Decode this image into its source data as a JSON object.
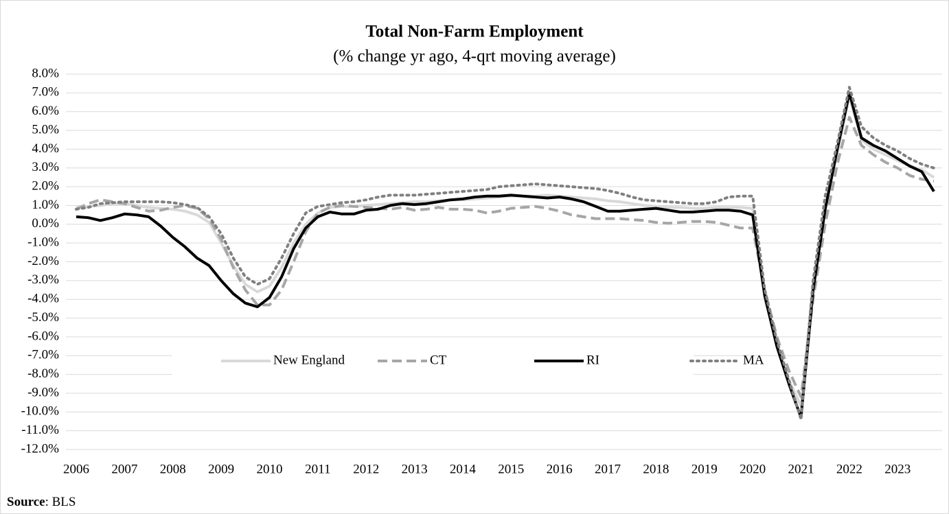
{
  "chart_data": {
    "type": "line",
    "title": "Total Non-Farm Employment",
    "subtitle": "(% change yr ago, 4-qrt moving average)",
    "source_label": "Source",
    "source": ": BLS",
    "categories": [
      "2006",
      null,
      null,
      null,
      "2007",
      null,
      null,
      null,
      "2008",
      null,
      null,
      null,
      "2009",
      null,
      null,
      null,
      "2010",
      null,
      null,
      null,
      "2011",
      null,
      null,
      null,
      "2012",
      null,
      null,
      null,
      "2013",
      null,
      null,
      null,
      "2014",
      null,
      null,
      null,
      "2015",
      null,
      null,
      null,
      "2016",
      null,
      null,
      null,
      "2017",
      null,
      null,
      null,
      "2018",
      null,
      null,
      null,
      "2019",
      null,
      null,
      null,
      "2020",
      null,
      null,
      null,
      "2021",
      null,
      null,
      null,
      "2022",
      null,
      null,
      null,
      "2023",
      null,
      null,
      null
    ],
    "series": [
      {
        "name": "New England",
        "color": "#d9d9d9",
        "dash": "solid",
        "values": [
          0.9,
          0.95,
          1.0,
          1.1,
          1.1,
          1.0,
          0.9,
          0.85,
          0.8,
          0.7,
          0.5,
          0.1,
          -1.0,
          -2.2,
          -3.2,
          -3.6,
          -3.3,
          -2.3,
          -1.0,
          0.0,
          0.6,
          0.9,
          0.95,
          0.95,
          1.0,
          1.05,
          1.1,
          1.15,
          1.2,
          1.2,
          1.25,
          1.3,
          1.3,
          1.35,
          1.4,
          1.45,
          1.5,
          1.5,
          1.5,
          1.55,
          1.5,
          1.45,
          1.4,
          1.35,
          1.25,
          1.2,
          1.1,
          1.0,
          0.95,
          0.9,
          0.9,
          0.85,
          0.85,
          0.9,
          0.9,
          0.9,
          0.85,
          -4.0,
          -6.3,
          -8.3,
          -9.7,
          -3.2,
          1.0,
          3.8,
          6.8,
          4.5,
          4.0,
          3.7,
          3.4,
          3.1,
          2.9,
          2.5
        ]
      },
      {
        "name": "CT",
        "color": "#a6a6a6",
        "dash": "dashed",
        "values": [
          0.8,
          1.1,
          1.3,
          1.2,
          1.1,
          0.9,
          0.7,
          0.75,
          0.9,
          1.0,
          0.85,
          0.3,
          -0.8,
          -2.3,
          -3.5,
          -4.3,
          -4.3,
          -3.5,
          -2.0,
          -0.4,
          0.6,
          0.9,
          1.0,
          0.95,
          0.9,
          0.85,
          0.8,
          0.9,
          0.75,
          0.8,
          0.9,
          0.8,
          0.8,
          0.75,
          0.6,
          0.7,
          0.85,
          0.9,
          0.95,
          0.85,
          0.7,
          0.5,
          0.4,
          0.3,
          0.3,
          0.3,
          0.25,
          0.2,
          0.1,
          0.05,
          0.1,
          0.15,
          0.15,
          0.1,
          -0.05,
          -0.2,
          -0.2,
          -3.5,
          -6.0,
          -7.8,
          -9.2,
          -4.0,
          0.0,
          3.2,
          5.7,
          4.2,
          3.7,
          3.3,
          3.0,
          2.6,
          2.4,
          2.3
        ]
      },
      {
        "name": "RI",
        "color": "#000000",
        "dash": "solid",
        "values": [
          0.4,
          0.35,
          0.2,
          0.35,
          0.55,
          0.5,
          0.4,
          -0.1,
          -0.7,
          -1.2,
          -1.8,
          -2.2,
          -3.0,
          -3.7,
          -4.2,
          -4.4,
          -3.9,
          -2.8,
          -1.3,
          -0.2,
          0.4,
          0.65,
          0.55,
          0.55,
          0.75,
          0.8,
          1.0,
          1.1,
          1.05,
          1.1,
          1.2,
          1.3,
          1.35,
          1.45,
          1.5,
          1.5,
          1.55,
          1.5,
          1.45,
          1.4,
          1.45,
          1.35,
          1.2,
          0.95,
          0.7,
          0.7,
          0.75,
          0.8,
          0.85,
          0.75,
          0.65,
          0.65,
          0.7,
          0.75,
          0.75,
          0.7,
          0.5,
          -3.8,
          -6.5,
          -8.5,
          -10.3,
          -3.5,
          0.8,
          4.0,
          7.0,
          4.6,
          4.2,
          3.9,
          3.5,
          3.1,
          2.8,
          1.75
        ]
      },
      {
        "name": "MA",
        "color": "#808080",
        "dash": "dotted",
        "values": [
          0.8,
          0.9,
          1.1,
          1.15,
          1.2,
          1.2,
          1.2,
          1.2,
          1.15,
          1.05,
          0.9,
          0.4,
          -0.5,
          -1.8,
          -2.8,
          -3.2,
          -2.9,
          -1.8,
          -0.5,
          0.6,
          0.95,
          1.05,
          1.15,
          1.2,
          1.3,
          1.45,
          1.55,
          1.55,
          1.55,
          1.6,
          1.65,
          1.7,
          1.75,
          1.8,
          1.85,
          2.0,
          2.05,
          2.1,
          2.15,
          2.1,
          2.05,
          2.0,
          1.95,
          1.9,
          1.8,
          1.65,
          1.45,
          1.3,
          1.25,
          1.2,
          1.15,
          1.1,
          1.1,
          1.2,
          1.45,
          1.5,
          1.5,
          -3.5,
          -6.2,
          -8.3,
          -10.4,
          -3.0,
          1.5,
          4.3,
          7.3,
          5.2,
          4.6,
          4.2,
          3.9,
          3.5,
          3.2,
          3.0
        ]
      }
    ],
    "ylim": [
      -12,
      8
    ],
    "yticks": [
      {
        "value": 8,
        "label": "8.0%"
      },
      {
        "value": 7,
        "label": "7.0%"
      },
      {
        "value": 6,
        "label": "6.0%"
      },
      {
        "value": 5,
        "label": "5.0%"
      },
      {
        "value": 4,
        "label": "4.0%"
      },
      {
        "value": 3,
        "label": "3.0%"
      },
      {
        "value": 2,
        "label": "2.0%"
      },
      {
        "value": 1,
        "label": "1.0%"
      },
      {
        "value": 0,
        "label": "0.0%"
      },
      {
        "value": -1,
        "label": "-1.0%"
      },
      {
        "value": -2,
        "label": "-2.0%"
      },
      {
        "value": -3,
        "label": "-3.0%"
      },
      {
        "value": -4,
        "label": "-4.0%"
      },
      {
        "value": -5,
        "label": "-5.0%"
      },
      {
        "value": -6,
        "label": "-6.0%"
      },
      {
        "value": -7,
        "label": "-7.0%"
      },
      {
        "value": -8,
        "label": "-8.0%"
      },
      {
        "value": -9,
        "label": "-9.0%"
      },
      {
        "value": -10,
        "label": "-10.0%"
      },
      {
        "value": -11,
        "label": "-11.0%"
      },
      {
        "value": -12,
        "label": "-12.0%"
      }
    ],
    "grid": true,
    "legend": "lower-left"
  }
}
